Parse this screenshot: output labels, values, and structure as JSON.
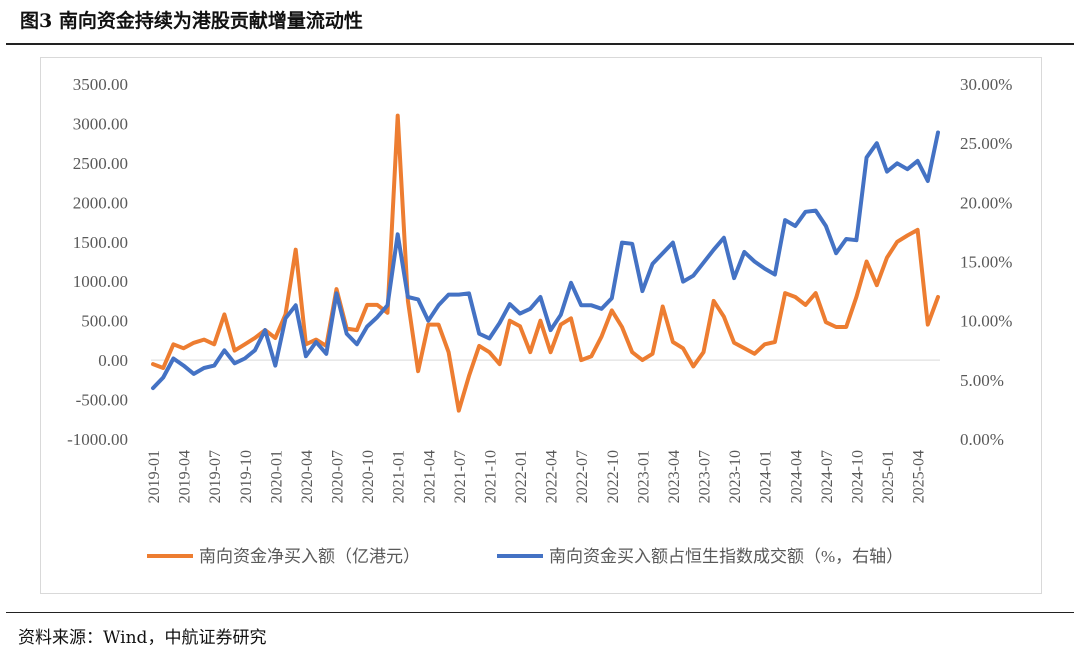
{
  "figure": {
    "title": "图3  南向资金持续为港股贡献增量流动性",
    "source": "资料来源：Wind，中航证券研究"
  },
  "chart_data": {
    "type": "line",
    "title": "",
    "xlabel": "",
    "ylabel": "",
    "x_tick_labels": [
      "2019-01",
      "2019-04",
      "2019-07",
      "2019-10",
      "2020-01",
      "2020-04",
      "2020-07",
      "2020-10",
      "2021-01",
      "2021-04",
      "2021-07",
      "2021-10",
      "2022-01",
      "2022-04",
      "2022-07",
      "2022-10",
      "2023-01",
      "2023-04",
      "2023-07",
      "2023-10",
      "2024-01",
      "2024-04",
      "2024-07",
      "2024-10",
      "2025-01",
      "2025-04"
    ],
    "y_left": {
      "range": [
        -1000,
        3500
      ],
      "ticks": [
        "3500.00",
        "3000.00",
        "2500.00",
        "2000.00",
        "1500.00",
        "1000.00",
        "500.00",
        "0.00",
        "-500.00",
        "-1000.00"
      ]
    },
    "y_right": {
      "range": [
        0,
        30
      ],
      "ticks": [
        "30.00%",
        "25.00%",
        "20.00%",
        "15.00%",
        "10.00%",
        "5.00%",
        "0.00%"
      ]
    },
    "grid": false,
    "legend_position": "bottom",
    "series": [
      {
        "name": "南向资金净买入额（亿港元）",
        "axis": "left",
        "color": "#ED7D31",
        "values": [
          -50,
          -100,
          200,
          150,
          220,
          260,
          200,
          580,
          120,
          200,
          280,
          380,
          280,
          580,
          1400,
          200,
          260,
          180,
          900,
          400,
          380,
          700,
          700,
          600,
          3100,
          750,
          -140,
          450,
          450,
          100,
          -640,
          -200,
          180,
          100,
          -50,
          500,
          430,
          100,
          500,
          100,
          450,
          530,
          0,
          50,
          300,
          630,
          420,
          100,
          0,
          80,
          680,
          230,
          150,
          -80,
          100,
          750,
          550,
          220,
          150,
          80,
          200,
          230,
          850,
          800,
          700,
          850,
          480,
          420,
          420,
          800,
          1250,
          950,
          1300,
          1500,
          1580,
          1650,
          450,
          800
        ]
      },
      {
        "name": "南向资金买入额占恒生指数成交额（%，右轴）",
        "axis": "right",
        "color": "#4472C4",
        "values": [
          4.3,
          5.2,
          6.8,
          6.2,
          5.5,
          6.0,
          6.2,
          7.5,
          6.4,
          6.8,
          7.5,
          9.2,
          6.2,
          10.2,
          11.3,
          7.0,
          8.2,
          7.2,
          12.3,
          8.9,
          8.0,
          9.5,
          10.3,
          11.3,
          17.3,
          12.0,
          11.8,
          10.0,
          11.3,
          12.2,
          12.2,
          12.3,
          8.9,
          8.5,
          9.8,
          11.4,
          10.6,
          11.0,
          12.0,
          9.2,
          10.5,
          13.2,
          11.3,
          11.3,
          11.0,
          11.9,
          16.6,
          16.5,
          12.5,
          14.8,
          15.7,
          16.6,
          13.3,
          13.8,
          14.9,
          16.0,
          17.0,
          13.6,
          15.8,
          15.0,
          14.4,
          13.9,
          18.5,
          18.0,
          19.2,
          19.3,
          18.0,
          15.7,
          16.9,
          16.8,
          23.8,
          25.0,
          22.6,
          23.3,
          22.8,
          23.5,
          21.8,
          25.9
        ]
      }
    ]
  }
}
